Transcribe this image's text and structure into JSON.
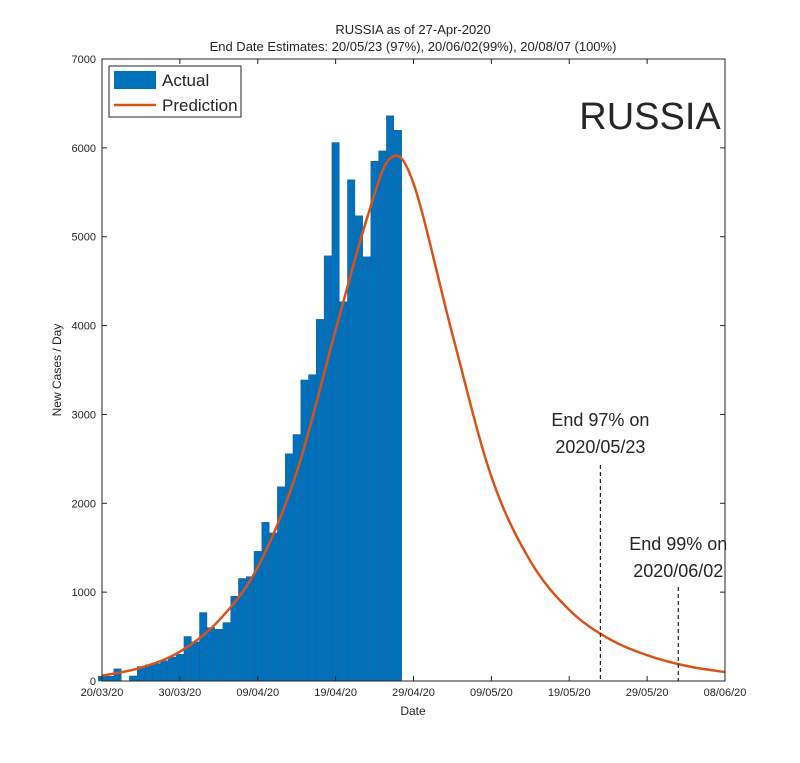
{
  "chart_data": {
    "type": "bar",
    "title": "RUSSIA as of 27-Apr-2020",
    "subtitle": "End Date Estimates: 20/05/23 (97%), 20/06/02(99%), 20/08/07 (100%)",
    "xlabel": "Date",
    "ylabel": "New Cases / Day",
    "x_start": "20/03/20",
    "x_end": "08/06/20",
    "x_ticks": [
      "20/03/20",
      "30/03/20",
      "09/04/20",
      "19/04/20",
      "29/04/20",
      "09/05/20",
      "19/05/20",
      "29/05/20",
      "08/06/20"
    ],
    "y_ticks": [
      0,
      1000,
      2000,
      3000,
      4000,
      5000,
      6000,
      7000
    ],
    "ylim": [
      0,
      7000
    ],
    "watermark_label": "RUSSIA",
    "series": [
      {
        "name": "Actual",
        "type": "bar",
        "color": "#0072bd",
        "dates": [
          "20/03/20",
          "21/03/20",
          "22/03/20",
          "23/03/20",
          "24/03/20",
          "25/03/20",
          "26/03/20",
          "27/03/20",
          "28/03/20",
          "29/03/20",
          "30/03/20",
          "31/03/20",
          "01/04/20",
          "02/04/20",
          "03/04/20",
          "04/04/20",
          "05/04/20",
          "06/04/20",
          "07/04/20",
          "08/04/20",
          "09/04/20",
          "10/04/20",
          "11/04/20",
          "12/04/20",
          "13/04/20",
          "14/04/20",
          "15/04/20",
          "16/04/20",
          "17/04/20",
          "18/04/20",
          "19/04/20",
          "20/04/20",
          "21/04/20",
          "22/04/20",
          "23/04/20",
          "24/04/20",
          "25/04/20",
          "26/04/20",
          "27/04/20"
        ],
        "values": [
          53,
          54,
          137,
          0,
          57,
          163,
          182,
          196,
          228,
          270,
          302,
          501,
          440,
          771,
          601,
          582,
          658,
          954,
          1154,
          1175,
          1459,
          1786,
          1667,
          2186,
          2558,
          2774,
          3388,
          3448,
          4070,
          4785,
          6060,
          4268,
          5642,
          5236,
          4774,
          5849,
          5966,
          6361,
          6198
        ]
      },
      {
        "name": "Prediction",
        "type": "line",
        "color": "#d95319",
        "x": [
          "20/03/20",
          "25/03/20",
          "30/03/20",
          "04/04/20",
          "09/04/20",
          "14/04/20",
          "19/04/20",
          "23/04/20",
          "26/04/20",
          "29/04/20",
          "04/05/20",
          "09/05/20",
          "14/05/20",
          "19/05/20",
          "24/05/20",
          "29/05/20",
          "03/06/20",
          "08/06/20"
        ],
        "values": [
          60,
          150,
          330,
          680,
          1280,
          2350,
          3950,
          5200,
          5880,
          5600,
          3900,
          2300,
          1350,
          800,
          480,
          290,
          170,
          100
        ]
      }
    ],
    "annotations": [
      {
        "line1": "End 97% on",
        "line2": "2020/05/23",
        "date": "23/05/20"
      },
      {
        "line1": "End 99% on",
        "line2": "2020/06/02",
        "date": "02/06/20"
      }
    ],
    "legend": {
      "placement": "top-left"
    },
    "grid": false
  }
}
